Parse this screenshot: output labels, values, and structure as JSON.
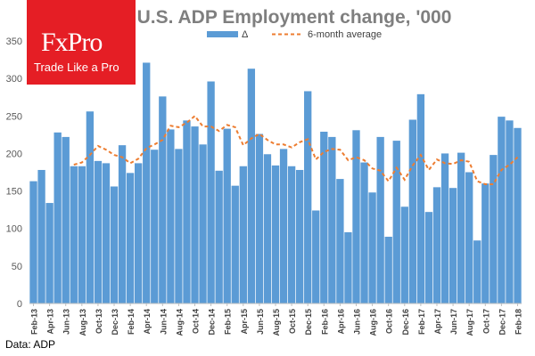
{
  "logo": {
    "name": "FxPro",
    "tagline": "Trade Like a Pro"
  },
  "source": "Data: ADP",
  "colors": {
    "bar": "#5b9bd5",
    "average": "#ed7d31",
    "logo_bg": "#e51e25",
    "title": "#7f7f7f"
  },
  "chart_data": {
    "type": "bar",
    "title": "U.S. ADP Employment change, '000",
    "xlabel": "",
    "ylabel": "",
    "ylim": [
      0,
      350
    ],
    "yticks": [
      0,
      50,
      100,
      150,
      200,
      250,
      300,
      350
    ],
    "grid": false,
    "legend_position": "top",
    "categories": [
      "Feb-13",
      "Mar-13",
      "Apr-13",
      "May-13",
      "Jun-13",
      "Jul-13",
      "Aug-13",
      "Sep-13",
      "Oct-13",
      "Nov-13",
      "Dec-13",
      "Jan-14",
      "Feb-14",
      "Mar-14",
      "Apr-14",
      "May-14",
      "Jun-14",
      "Jul-14",
      "Aug-14",
      "Sep-14",
      "Oct-14",
      "Nov-14",
      "Dec-14",
      "Jan-15",
      "Feb-15",
      "Mar-15",
      "Apr-15",
      "May-15",
      "Jun-15",
      "Jul-15",
      "Aug-15",
      "Sep-15",
      "Oct-15",
      "Nov-15",
      "Dec-15",
      "Jan-16",
      "Feb-16",
      "Mar-16",
      "Apr-16",
      "May-16",
      "Jun-16",
      "Jul-16",
      "Aug-16",
      "Sep-16",
      "Oct-16",
      "Nov-16",
      "Dec-16",
      "Jan-17",
      "Feb-17",
      "Mar-17",
      "Apr-17",
      "May-17",
      "Jun-17",
      "Jul-17",
      "Aug-17",
      "Sep-17",
      "Oct-17",
      "Nov-17",
      "Dec-17",
      "Jan-18",
      "Feb-18"
    ],
    "tick_labels": [
      "Feb-13",
      "Apr-13",
      "Jun-13",
      "Aug-13",
      "Oct-13",
      "Dec-13",
      "Feb-14",
      "Apr-14",
      "Jun-14",
      "Aug-14",
      "Oct-14",
      "Dec-14",
      "Feb-15",
      "Apr-15",
      "Jun-15",
      "Aug-15",
      "Oct-15",
      "Dec-15",
      "Feb-16",
      "Apr-16",
      "Jun-16",
      "Aug-16",
      "Oct-16",
      "Dec-16",
      "Feb-17",
      "Apr-17",
      "Jun-17",
      "Aug-17",
      "Oct-17",
      "Dec-17",
      "Feb-18"
    ],
    "series": [
      {
        "name": "Δ",
        "type": "bar",
        "values": [
          163,
          178,
          134,
          228,
          222,
          183,
          183,
          256,
          190,
          187,
          156,
          211,
          174,
          187,
          321,
          205,
          276,
          232,
          206,
          244,
          236,
          212,
          296,
          177,
          233,
          157,
          183,
          313,
          226,
          199,
          184,
          206,
          183,
          178,
          283,
          124,
          229,
          222,
          166,
          95,
          231,
          188,
          148,
          222,
          89,
          217,
          129,
          245,
          279,
          122,
          155,
          200,
          154,
          201,
          175,
          84,
          160,
          198,
          249,
          244,
          234
        ]
      },
      {
        "name": "6-month average",
        "type": "line",
        "values": [
          null,
          null,
          null,
          null,
          null,
          185,
          188,
          198,
          210,
          205,
          198,
          195,
          187,
          193,
          207,
          212,
          218,
          237,
          235,
          241,
          250,
          236,
          236,
          230,
          238,
          235,
          211,
          220,
          226,
          218,
          212,
          212,
          208,
          215,
          219,
          192,
          202,
          206,
          205,
          191,
          195,
          191,
          180,
          177,
          163,
          181,
          165,
          184,
          198,
          178,
          192,
          187,
          186,
          191,
          189,
          163,
          159,
          159,
          178,
          185,
          195
        ]
      }
    ]
  }
}
